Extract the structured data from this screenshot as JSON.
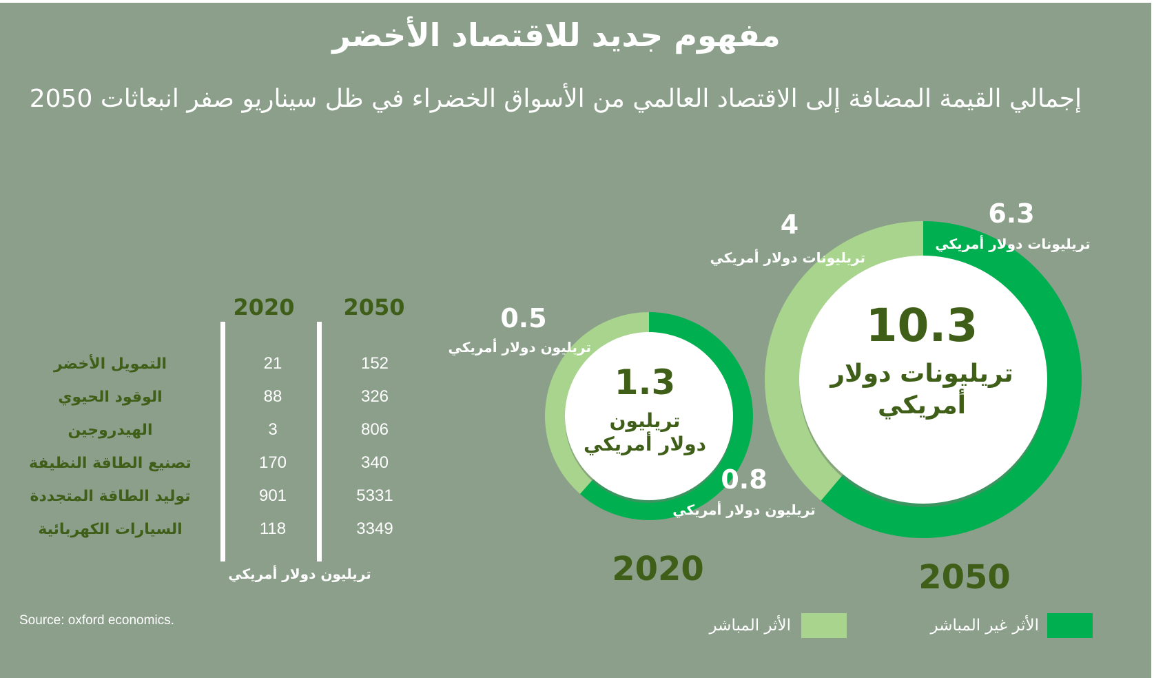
{
  "title": "مفهوم جديد للاقتصاد الأخضر",
  "subtitle": "إجمالي القيمة المضافة إلى الاقتصاد العالمي من الأسواق الخضراء في ظل سيناريو صفر انبعاثات 2050",
  "colors": {
    "background": "#8b9f8b",
    "direct": "#a8d48d",
    "indirect": "#00b050",
    "text_dark": "#3f5e17",
    "text_light": "#ffffff"
  },
  "table": {
    "headers": [
      "2020",
      "2050"
    ],
    "rows": [
      {
        "label": "التمويل الأخضر",
        "v2020": "21",
        "v2050": "152"
      },
      {
        "label": "الوقود الحيوي",
        "v2020": "88",
        "v2050": "326"
      },
      {
        "label": "الهيدروجين",
        "v2020": "3",
        "v2050": "806"
      },
      {
        "label": "تصنيع الطاقة النظيفة",
        "v2020": "170",
        "v2050": "340"
      },
      {
        "label": "توليد الطاقة المتجددة",
        "v2020": "901",
        "v2050": "5331"
      },
      {
        "label": "السيارات  الكهربائية",
        "v2020": "118",
        "v2050": "3349"
      }
    ],
    "unit": "تريليون دولار أمريكي"
  },
  "source": "Source: oxford economics.",
  "chart_data": {
    "type": "pie",
    "charts": [
      {
        "year": "2020",
        "total": "1.3",
        "total_unit": "تريليون دولار أمريكي",
        "slices": [
          {
            "name": "الأثر المباشر",
            "value": 0.5,
            "value_label": "0.5",
            "unit": "تريليون دولار أمريكي"
          },
          {
            "name": "الأثر غير المباشر",
            "value": 0.8,
            "value_label": "0.8",
            "unit": "تريليون دولار أمريكي"
          }
        ]
      },
      {
        "year": "2050",
        "total": "10.3",
        "total_unit": "تريليونات دولار أمريكي",
        "slices": [
          {
            "name": "الأثر المباشر",
            "value": 4,
            "value_label": "4",
            "unit": "تريليونات دولار أمريكي"
          },
          {
            "name": "الأثر غير المباشر",
            "value": 6.3,
            "value_label": "6.3",
            "unit": "تريليونات دولار أمريكي"
          }
        ]
      }
    ],
    "legend": [
      "الأثر غير المباشر",
      "الأثر المباشر"
    ]
  }
}
